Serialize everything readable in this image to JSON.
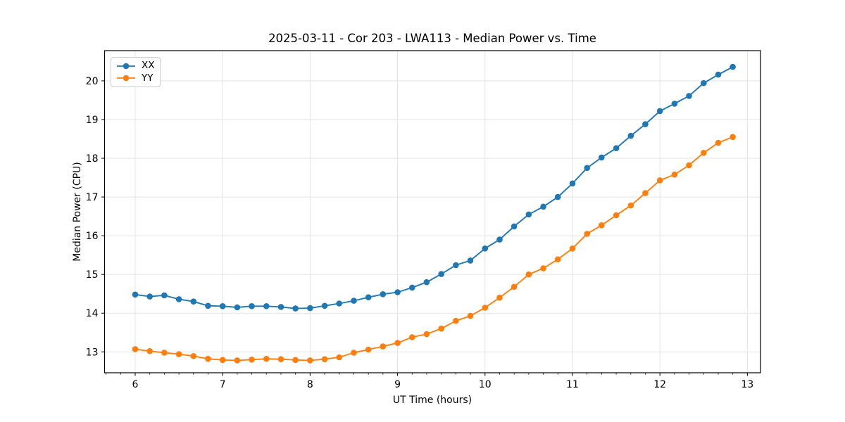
{
  "chart_data": {
    "type": "line",
    "title": "2025-03-11 - Cor 203 - LWA113 - Median Power vs. Time",
    "xlabel": "UT Time (hours)",
    "ylabel": "Median Power (CPU)",
    "xlim": [
      5.65,
      13.15
    ],
    "ylim": [
      12.46,
      20.78
    ],
    "xticks": [
      6,
      7,
      8,
      9,
      10,
      11,
      12,
      13
    ],
    "yticks": [
      13,
      14,
      15,
      16,
      17,
      18,
      19,
      20
    ],
    "minor_ticks_x_step": 0.1667,
    "grid": true,
    "grid_color": "#e3e3e3",
    "spine_color": "#000000",
    "legend_position": "upper left",
    "x": [
      6.0,
      6.167,
      6.333,
      6.5,
      6.667,
      6.833,
      7.0,
      7.167,
      7.333,
      7.5,
      7.667,
      7.833,
      8.0,
      8.167,
      8.333,
      8.5,
      8.667,
      8.833,
      9.0,
      9.167,
      9.333,
      9.5,
      9.667,
      9.833,
      10.0,
      10.167,
      10.333,
      10.5,
      10.667,
      10.833,
      11.0,
      11.167,
      11.333,
      11.5,
      11.667,
      11.833,
      12.0,
      12.167,
      12.333,
      12.5,
      12.667,
      12.833
    ],
    "series": [
      {
        "name": "XX",
        "color": "#1f77b4",
        "marker": "circle",
        "values": [
          14.48,
          14.43,
          14.46,
          14.36,
          14.3,
          14.19,
          14.18,
          14.15,
          14.18,
          14.18,
          14.16,
          14.12,
          14.13,
          14.19,
          14.25,
          14.32,
          14.41,
          14.49,
          14.54,
          14.66,
          14.8,
          15.01,
          15.24,
          15.36,
          15.67,
          15.9,
          16.24,
          16.55,
          16.75,
          17.0,
          17.35,
          17.75,
          18.02,
          18.26,
          18.58,
          18.88,
          19.22,
          19.41,
          19.61,
          19.94,
          20.16,
          20.36
        ]
      },
      {
        "name": "YY",
        "color": "#ff7f0e",
        "marker": "circle",
        "values": [
          13.07,
          13.02,
          12.98,
          12.94,
          12.89,
          12.82,
          12.79,
          12.78,
          12.8,
          12.82,
          12.81,
          12.79,
          12.78,
          12.81,
          12.86,
          12.98,
          13.06,
          13.14,
          13.23,
          13.38,
          13.46,
          13.6,
          13.8,
          13.93,
          14.14,
          14.4,
          14.68,
          15.0,
          15.16,
          15.39,
          15.67,
          16.05,
          16.27,
          16.53,
          16.78,
          17.1,
          17.43,
          17.58,
          17.82,
          18.14,
          18.4,
          18.55
        ]
      }
    ]
  }
}
